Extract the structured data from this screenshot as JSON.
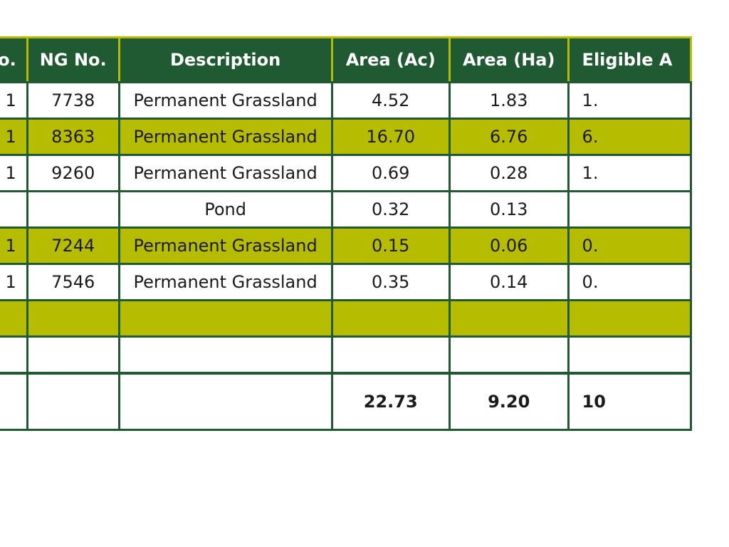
{
  "table": {
    "headers": [
      "No.",
      "NG No.",
      "Description",
      "Area (Ac)",
      "Area (Ha)",
      "Eligible A"
    ],
    "rows": [
      {
        "no": "1",
        "ng": "7738",
        "desc": "Permanent Grassland",
        "ac": "4.52",
        "ha": "1.83",
        "eligible": "1.",
        "highlight": false
      },
      {
        "no": "1",
        "ng": "8363",
        "desc": "Permanent Grassland",
        "ac": "16.70",
        "ha": "6.76",
        "eligible": "6.",
        "highlight": true
      },
      {
        "no": "1",
        "ng": "9260",
        "desc": "Permanent Grassland",
        "ac": "0.69",
        "ha": "0.28",
        "eligible": "1.",
        "highlight": false
      },
      {
        "no": "",
        "ng": "",
        "desc": "Pond",
        "ac": "0.32",
        "ha": "0.13",
        "eligible": "",
        "highlight": false
      },
      {
        "no": "1",
        "ng": "7244",
        "desc": "Permanent Grassland",
        "ac": "0.15",
        "ha": "0.06",
        "eligible": "0.",
        "highlight": true
      },
      {
        "no": "1",
        "ng": "7546",
        "desc": "Permanent Grassland",
        "ac": "0.35",
        "ha": "0.14",
        "eligible": "0.",
        "highlight": false
      },
      {
        "no": "",
        "ng": "",
        "desc": "",
        "ac": "",
        "ha": "",
        "eligible": "",
        "highlight": true
      },
      {
        "no": "",
        "ng": "",
        "desc": "",
        "ac": "",
        "ha": "",
        "eligible": "",
        "highlight": false
      }
    ],
    "totals": {
      "no": "",
      "ng": "",
      "desc": "",
      "ac": "22.73",
      "ha": "9.20",
      "eligible": "10"
    }
  },
  "colors": {
    "header_bg": "#1f5a33",
    "header_text": "#ffffff",
    "highlight_row": "#b6bd00",
    "border": "#1f5a33"
  }
}
